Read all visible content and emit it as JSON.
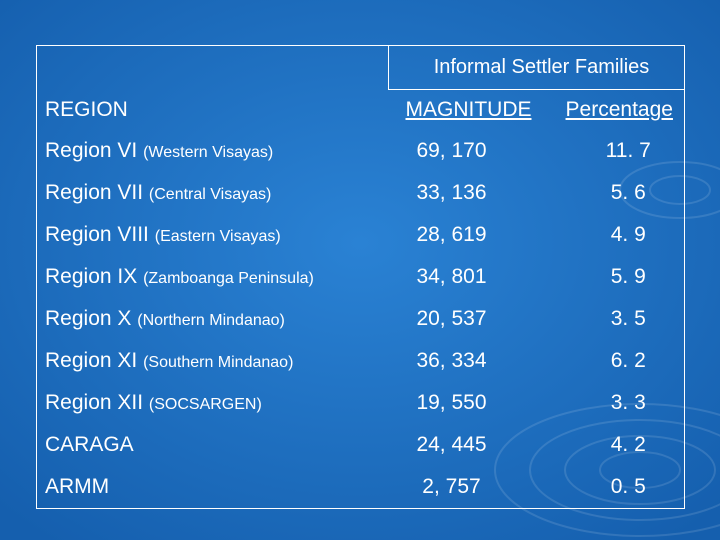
{
  "table": {
    "group_header": "Informal Settler Families",
    "headers": {
      "region": "REGION",
      "magnitude": "MAGNITUDE",
      "percentage": "Percentage"
    },
    "rows": [
      {
        "name": "Region VI",
        "detail": "(Western Visayas)",
        "magnitude": "69, 170",
        "percentage": "11. 7"
      },
      {
        "name": "Region VII",
        "detail": "(Central Visayas)",
        "magnitude": "33, 136",
        "percentage": "5. 6"
      },
      {
        "name": "Region VIII",
        "detail": "(Eastern Visayas)",
        "magnitude": "28, 619",
        "percentage": "4. 9"
      },
      {
        "name": "Region IX",
        "detail": "(Zamboanga Peninsula)",
        "magnitude": "34, 801",
        "percentage": "5. 9"
      },
      {
        "name": "Region X",
        "detail": "(Northern Mindanao)",
        "magnitude": "20, 537",
        "percentage": "3. 5"
      },
      {
        "name": "Region XI",
        "detail": "(Southern Mindanao)",
        "magnitude": "36, 334",
        "percentage": "6. 2"
      },
      {
        "name": "Region XII",
        "detail": "(SOCSARGEN)",
        "magnitude": "19, 550",
        "percentage": "3. 3"
      },
      {
        "name": "CARAGA",
        "detail": "",
        "magnitude": "24, 445",
        "percentage": "4. 2"
      },
      {
        "name": "ARMM",
        "detail": "",
        "magnitude": "2, 757",
        "percentage": "0. 5"
      }
    ]
  },
  "colors": {
    "background": "#1d6fc0",
    "text": "#ffffff"
  }
}
